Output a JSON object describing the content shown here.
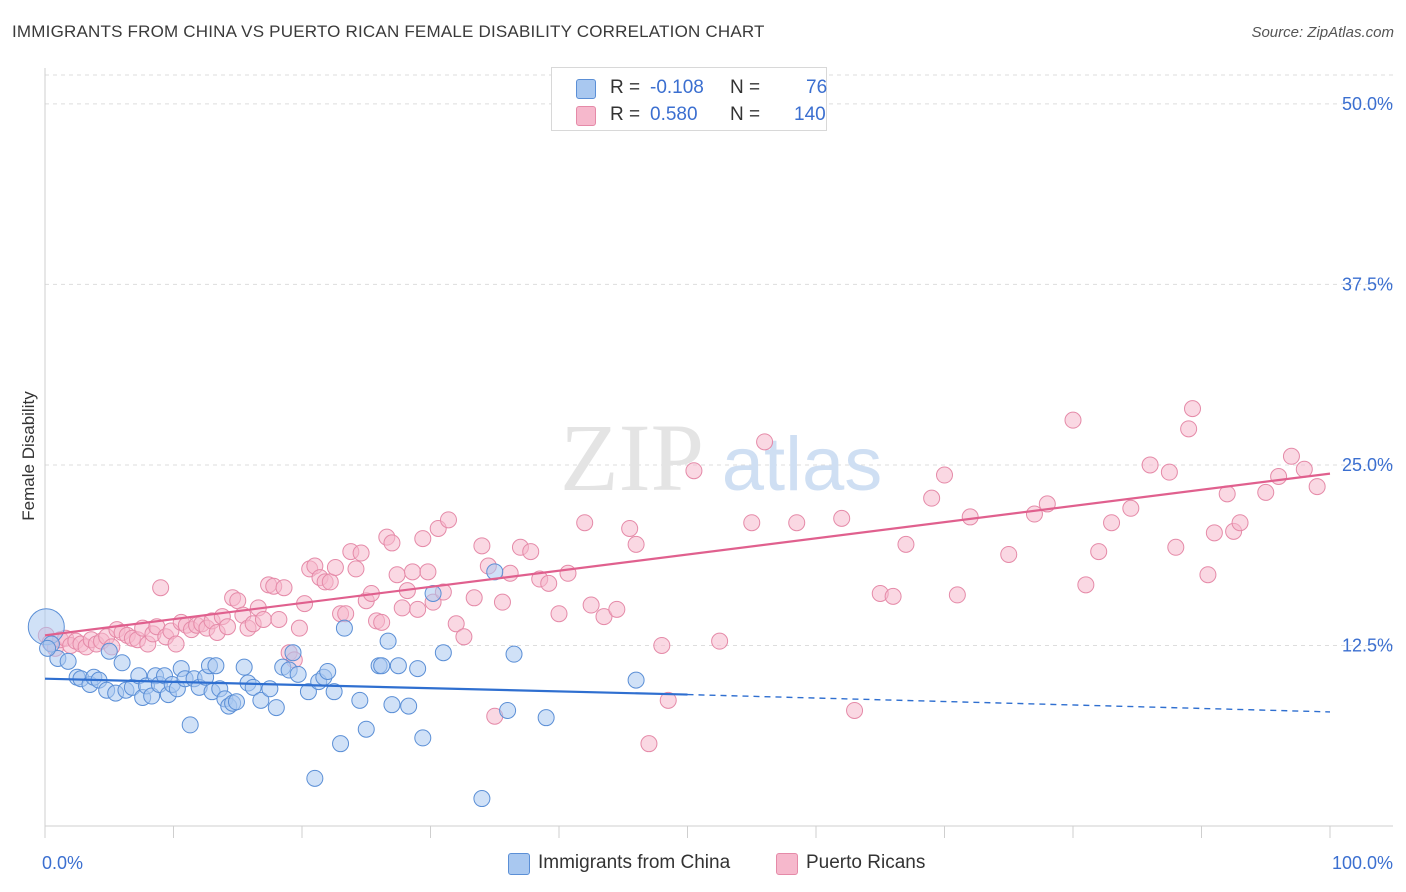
{
  "header": {
    "title": "IMMIGRANTS FROM CHINA VS PUERTO RICAN FEMALE DISABILITY CORRELATION CHART",
    "source": "Source: ZipAtlas.com"
  },
  "watermark": {
    "zip": "ZIP",
    "atlas": "atlas"
  },
  "colors": {
    "blue_fill": "#a9c8f0",
    "blue_stroke": "#5b8fd6",
    "blue_line": "#2f6fd0",
    "pink_fill": "#f6b8cc",
    "pink_stroke": "#e58aa8",
    "pink_line": "#e0608e",
    "tick_label": "#3b6fd0",
    "grid": "#dddddd"
  },
  "legend_top": {
    "rows": [
      {
        "r_label": "R =",
        "r_value": "-0.108",
        "n_label": "N =",
        "n_value": "76"
      },
      {
        "r_label": "R =",
        "r_value": "0.580",
        "n_label": "N =",
        "n_value": "140"
      }
    ]
  },
  "chart_data": {
    "type": "scatter",
    "title": "IMMIGRANTS FROM CHINA VS PUERTO RICAN FEMALE DISABILITY CORRELATION CHART",
    "xlabel": "",
    "ylabel": "Female Disability",
    "xlim": [
      0,
      100
    ],
    "ylim": [
      0,
      52
    ],
    "x_tick_labels": [
      "0.0%",
      "100.0%"
    ],
    "y_ticks": [
      12.5,
      25.0,
      37.5,
      50.0
    ],
    "y_tick_labels": [
      "12.5%",
      "25.0%",
      "37.5%",
      "50.0%"
    ],
    "grid": true,
    "legend": {
      "position": "bottom",
      "entries": [
        "Immigrants from China",
        "Puerto Ricans"
      ]
    },
    "series": [
      {
        "name": "Immigrants from China",
        "color": "#a9c8f0",
        "trend": {
          "x_start": 0,
          "y_start": 10.2,
          "x_solid_end": 50,
          "y_solid_end": 9.1,
          "x_end": 100,
          "y_end": 7.9
        },
        "points": [
          [
            0.1,
            13.8
          ],
          [
            0.5,
            12.6
          ],
          [
            1.0,
            11.6
          ],
          [
            1.8,
            11.4
          ],
          [
            2.5,
            10.3
          ],
          [
            2.8,
            10.2
          ],
          [
            3.5,
            9.8
          ],
          [
            3.8,
            10.3
          ],
          [
            4.2,
            10.1
          ],
          [
            4.8,
            9.4
          ],
          [
            5.0,
            12.1
          ],
          [
            5.5,
            9.2
          ],
          [
            6.0,
            11.3
          ],
          [
            6.3,
            9.4
          ],
          [
            6.8,
            9.6
          ],
          [
            7.3,
            10.4
          ],
          [
            7.6,
            8.9
          ],
          [
            7.9,
            9.7
          ],
          [
            8.3,
            9.0
          ],
          [
            8.6,
            10.4
          ],
          [
            8.9,
            9.8
          ],
          [
            9.3,
            10.4
          ],
          [
            9.6,
            9.1
          ],
          [
            9.9,
            9.8
          ],
          [
            10.3,
            9.5
          ],
          [
            10.6,
            10.9
          ],
          [
            10.9,
            10.2
          ],
          [
            11.3,
            7.0
          ],
          [
            11.6,
            10.2
          ],
          [
            12.0,
            9.6
          ],
          [
            12.5,
            10.3
          ],
          [
            12.8,
            11.1
          ],
          [
            13.0,
            9.3
          ],
          [
            13.3,
            11.1
          ],
          [
            13.6,
            9.5
          ],
          [
            14.0,
            8.8
          ],
          [
            14.3,
            8.3
          ],
          [
            14.6,
            8.5
          ],
          [
            14.9,
            8.6
          ],
          [
            15.5,
            11.0
          ],
          [
            15.8,
            9.9
          ],
          [
            16.2,
            9.6
          ],
          [
            16.8,
            8.7
          ],
          [
            17.5,
            9.5
          ],
          [
            18.0,
            8.2
          ],
          [
            18.5,
            11.0
          ],
          [
            19.0,
            10.8
          ],
          [
            19.3,
            12.0
          ],
          [
            19.7,
            10.5
          ],
          [
            20.5,
            9.3
          ],
          [
            21.0,
            3.3
          ],
          [
            21.3,
            10.0
          ],
          [
            21.7,
            10.3
          ],
          [
            22.0,
            10.7
          ],
          [
            22.5,
            9.3
          ],
          [
            23.0,
            5.7
          ],
          [
            23.3,
            13.7
          ],
          [
            24.5,
            8.7
          ],
          [
            25.0,
            6.7
          ],
          [
            26.0,
            11.1
          ],
          [
            26.2,
            11.1
          ],
          [
            26.7,
            12.8
          ],
          [
            27.0,
            8.4
          ],
          [
            27.5,
            11.1
          ],
          [
            28.3,
            8.3
          ],
          [
            29.0,
            10.9
          ],
          [
            29.4,
            6.1
          ],
          [
            30.2,
            16.1
          ],
          [
            31.0,
            12.0
          ],
          [
            34.0,
            1.9
          ],
          [
            35.0,
            17.6
          ],
          [
            36.0,
            8.0
          ],
          [
            36.5,
            11.9
          ],
          [
            39.0,
            7.5
          ],
          [
            46.0,
            10.1
          ],
          [
            0.2,
            12.3
          ]
        ]
      },
      {
        "name": "Puerto Ricans",
        "color": "#f6b8cc",
        "trend": {
          "x_start": 0,
          "y_start": 13.2,
          "x_end": 100,
          "y_end": 24.4
        },
        "points": [
          [
            0.1,
            13.2
          ],
          [
            0.4,
            12.7
          ],
          [
            0.8,
            12.3
          ],
          [
            1.2,
            12.9
          ],
          [
            1.6,
            13.0
          ],
          [
            2.0,
            12.5
          ],
          [
            2.4,
            12.8
          ],
          [
            2.8,
            12.6
          ],
          [
            3.2,
            12.4
          ],
          [
            3.6,
            12.9
          ],
          [
            4.0,
            12.6
          ],
          [
            4.4,
            12.8
          ],
          [
            4.8,
            13.1
          ],
          [
            5.2,
            12.4
          ],
          [
            5.6,
            13.6
          ],
          [
            6.0,
            13.4
          ],
          [
            6.4,
            13.2
          ],
          [
            6.8,
            13.0
          ],
          [
            7.2,
            12.9
          ],
          [
            7.6,
            13.7
          ],
          [
            8.0,
            12.6
          ],
          [
            8.4,
            13.3
          ],
          [
            8.7,
            13.8
          ],
          [
            9.0,
            16.5
          ],
          [
            9.4,
            13.1
          ],
          [
            9.8,
            13.5
          ],
          [
            10.2,
            12.6
          ],
          [
            10.6,
            14.1
          ],
          [
            11.0,
            13.9
          ],
          [
            11.4,
            13.6
          ],
          [
            11.8,
            13.9
          ],
          [
            12.2,
            14.0
          ],
          [
            12.6,
            13.7
          ],
          [
            13.0,
            14.2
          ],
          [
            13.4,
            13.4
          ],
          [
            13.8,
            14.5
          ],
          [
            14.2,
            13.8
          ],
          [
            14.6,
            15.8
          ],
          [
            15.0,
            15.6
          ],
          [
            15.4,
            14.6
          ],
          [
            15.8,
            13.7
          ],
          [
            16.2,
            14.0
          ],
          [
            16.6,
            15.1
          ],
          [
            17.0,
            14.3
          ],
          [
            17.4,
            16.7
          ],
          [
            17.8,
            16.6
          ],
          [
            18.2,
            14.3
          ],
          [
            18.6,
            16.5
          ],
          [
            19.0,
            12.0
          ],
          [
            19.4,
            11.5
          ],
          [
            19.8,
            13.7
          ],
          [
            20.2,
            15.4
          ],
          [
            20.6,
            17.8
          ],
          [
            21.0,
            18.0
          ],
          [
            21.4,
            17.2
          ],
          [
            21.8,
            16.9
          ],
          [
            22.2,
            16.9
          ],
          [
            22.6,
            17.9
          ],
          [
            23.0,
            14.7
          ],
          [
            23.4,
            14.7
          ],
          [
            23.8,
            19.0
          ],
          [
            24.2,
            17.8
          ],
          [
            24.6,
            18.9
          ],
          [
            25.0,
            15.6
          ],
          [
            25.4,
            16.1
          ],
          [
            25.8,
            14.2
          ],
          [
            26.2,
            14.1
          ],
          [
            26.6,
            20.0
          ],
          [
            27.0,
            19.6
          ],
          [
            27.4,
            17.4
          ],
          [
            27.8,
            15.1
          ],
          [
            28.2,
            16.3
          ],
          [
            28.6,
            17.6
          ],
          [
            29.0,
            15.0
          ],
          [
            29.4,
            19.9
          ],
          [
            29.8,
            17.6
          ],
          [
            30.2,
            15.5
          ],
          [
            30.6,
            20.6
          ],
          [
            31.0,
            16.2
          ],
          [
            31.4,
            21.2
          ],
          [
            32.0,
            14.0
          ],
          [
            32.6,
            13.1
          ],
          [
            33.4,
            15.8
          ],
          [
            34.0,
            19.4
          ],
          [
            34.5,
            18.0
          ],
          [
            35.0,
            7.6
          ],
          [
            35.6,
            15.5
          ],
          [
            36.2,
            17.5
          ],
          [
            37.0,
            19.3
          ],
          [
            37.8,
            19.0
          ],
          [
            38.5,
            17.1
          ],
          [
            39.2,
            16.8
          ],
          [
            40.0,
            14.7
          ],
          [
            40.7,
            17.5
          ],
          [
            42.0,
            21.0
          ],
          [
            42.5,
            15.3
          ],
          [
            43.5,
            14.5
          ],
          [
            44.5,
            15.0
          ],
          [
            45.5,
            20.6
          ],
          [
            46.0,
            19.5
          ],
          [
            47.0,
            5.7
          ],
          [
            48.0,
            12.5
          ],
          [
            48.5,
            8.7
          ],
          [
            50.5,
            24.6
          ],
          [
            52.5,
            12.8
          ],
          [
            55.0,
            21.0
          ],
          [
            56.0,
            26.6
          ],
          [
            58.5,
            21.0
          ],
          [
            62.0,
            21.3
          ],
          [
            63.0,
            8.0
          ],
          [
            65.0,
            16.1
          ],
          [
            66.0,
            15.9
          ],
          [
            67.0,
            19.5
          ],
          [
            69.0,
            22.7
          ],
          [
            70.0,
            24.3
          ],
          [
            71.0,
            16.0
          ],
          [
            72.0,
            21.4
          ],
          [
            75.0,
            18.8
          ],
          [
            77.0,
            21.6
          ],
          [
            78.0,
            22.3
          ],
          [
            80.0,
            28.1
          ],
          [
            81.0,
            16.7
          ],
          [
            82.0,
            19.0
          ],
          [
            83.0,
            21.0
          ],
          [
            84.5,
            22.0
          ],
          [
            86.0,
            25.0
          ],
          [
            87.5,
            24.5
          ],
          [
            88.0,
            19.3
          ],
          [
            89.0,
            27.5
          ],
          [
            89.3,
            28.9
          ],
          [
            90.5,
            17.4
          ],
          [
            91.0,
            20.3
          ],
          [
            92.0,
            23.0
          ],
          [
            92.5,
            20.4
          ],
          [
            93.0,
            21.0
          ],
          [
            95.0,
            23.1
          ],
          [
            96.0,
            24.2
          ],
          [
            97.0,
            25.6
          ],
          [
            98.0,
            24.7
          ],
          [
            99.0,
            23.5
          ]
        ]
      }
    ]
  }
}
